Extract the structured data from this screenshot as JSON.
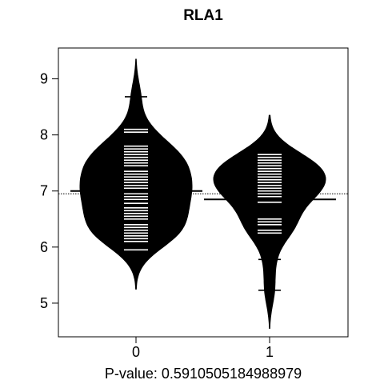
{
  "chart_data": {
    "type": "beanplot",
    "title": "RLA1",
    "xlabel": "P-value: 0.5910505184988979",
    "ylabel": "",
    "categories": [
      "0",
      "1"
    ],
    "ylim": [
      4.4,
      9.55
    ],
    "yticks": [
      "5",
      "6",
      "7",
      "8",
      "9"
    ],
    "overall_mean": 6.95,
    "series": [
      {
        "category": "0",
        "mean": 7.0,
        "median": 7.0,
        "density_peak": 7.0,
        "range": [
          5.25,
          9.35
        ],
        "points": [
          5.95,
          6.1,
          6.15,
          6.2,
          6.25,
          6.3,
          6.35,
          6.4,
          6.5,
          6.55,
          6.6,
          6.65,
          6.7,
          6.78,
          6.85,
          6.9,
          6.95,
          7.0,
          7.05,
          7.1,
          7.15,
          7.2,
          7.25,
          7.3,
          7.35,
          7.45,
          7.5,
          7.55,
          7.6,
          7.65,
          7.7,
          7.75,
          7.8,
          8.05,
          8.1,
          8.68
        ]
      },
      {
        "category": "1",
        "mean": 6.85,
        "median": 6.9,
        "density_peak": 7.05,
        "range": [
          4.55,
          8.35
        ],
        "points": [
          5.23,
          5.78,
          6.25,
          6.3,
          6.4,
          6.45,
          6.5,
          6.8,
          6.85,
          6.9,
          6.95,
          7.0,
          7.05,
          7.1,
          7.15,
          7.2,
          7.25,
          7.3,
          7.35,
          7.4,
          7.45,
          7.5,
          7.55,
          7.6,
          7.65
        ]
      }
    ]
  }
}
